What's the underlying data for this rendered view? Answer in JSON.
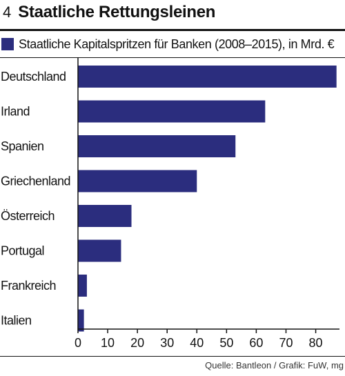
{
  "figure": {
    "number": "4",
    "title": "Staatliche Rettungsleinen",
    "source": "Quelle: Bantleon / Grafik: FuW, mg"
  },
  "colors": {
    "bar": "#2b2d7e",
    "axis": "#111111"
  },
  "chart_data": {
    "type": "bar",
    "orientation": "horizontal",
    "categories": [
      "Deutschland",
      "Irland",
      "Spanien",
      "Griechenland",
      "Österreich",
      "Portugal",
      "Frankreich",
      "Italien"
    ],
    "series": [
      {
        "name": "Staatliche Kapitalspritzen für Banken (2008–2015), in Mrd. €",
        "values": [
          87,
          63,
          53,
          40,
          18,
          14.5,
          3,
          2
        ]
      }
    ],
    "x_ticks": [
      0,
      10,
      20,
      30,
      40,
      50,
      60,
      70,
      80
    ],
    "xlim": [
      0,
      88
    ],
    "grid": false,
    "legend_position": "top-left"
  }
}
